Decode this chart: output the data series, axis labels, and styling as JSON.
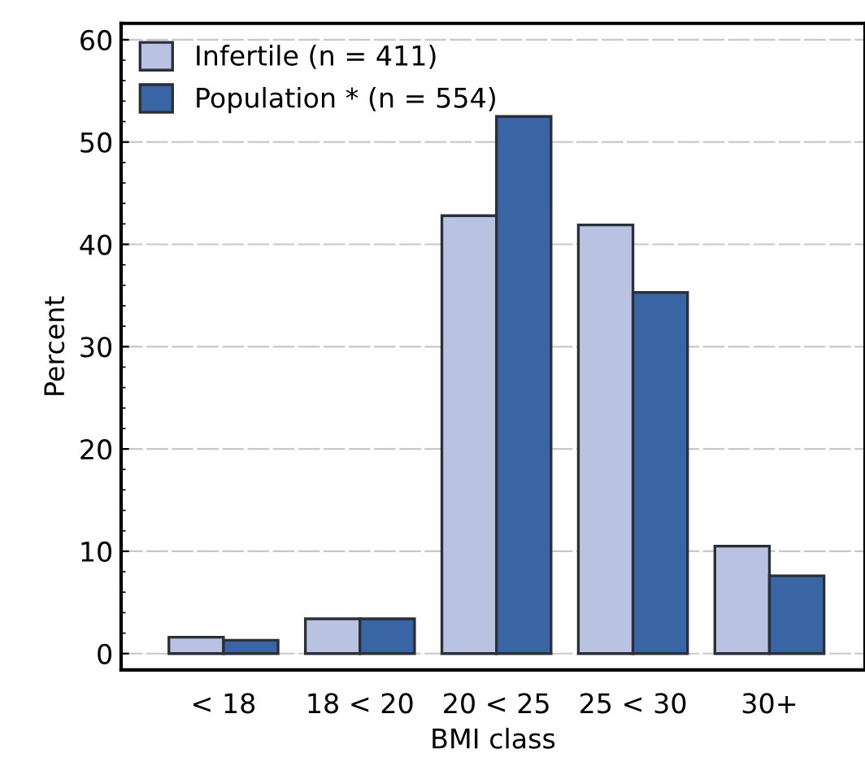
{
  "chart_data": {
    "type": "bar",
    "xlabel": "BMI class",
    "ylabel": "Percent",
    "categories": [
      "< 18",
      "18 < 20",
      "20 < 25",
      "25 < 30",
      "30+"
    ],
    "series": [
      {
        "name": "Infertile (n = 411)",
        "color": "#b9c3e1",
        "values": [
          1.6,
          3.4,
          42.8,
          41.9,
          10.5
        ]
      },
      {
        "name": "Population * (n = 554)",
        "color": "#3a65a5",
        "values": [
          1.3,
          3.4,
          52.5,
          35.3,
          7.6
        ]
      }
    ],
    "ylim": [
      -1.6,
      61.6
    ],
    "yticks": [
      0,
      10,
      20,
      30,
      40,
      50,
      60
    ],
    "grid": "y",
    "legend": "top left"
  }
}
